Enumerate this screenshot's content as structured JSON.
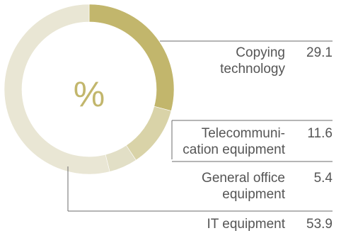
{
  "chart_data": {
    "type": "pie",
    "center_label": "%",
    "categories": [
      "Copying technology",
      "Telecommunication equipment",
      "General office equipment",
      "IT equipment"
    ],
    "values": [
      29.1,
      11.6,
      5.4,
      53.9
    ],
    "colors": [
      "#c2b66c",
      "#d9d3a8",
      "#e2dfc6",
      "#e9e6d4"
    ],
    "segments": [
      {
        "label_line1": "Copying",
        "label_line2": "technology",
        "value": "29.1"
      },
      {
        "label_line1": "Telecommuni-",
        "label_line2": "cation equipment",
        "value": "11.6"
      },
      {
        "label_line1": "General office",
        "label_line2": "equipment",
        "value": "5.4"
      },
      {
        "label_line1": "IT equipment",
        "label_line2": "",
        "value": "53.9"
      }
    ]
  }
}
